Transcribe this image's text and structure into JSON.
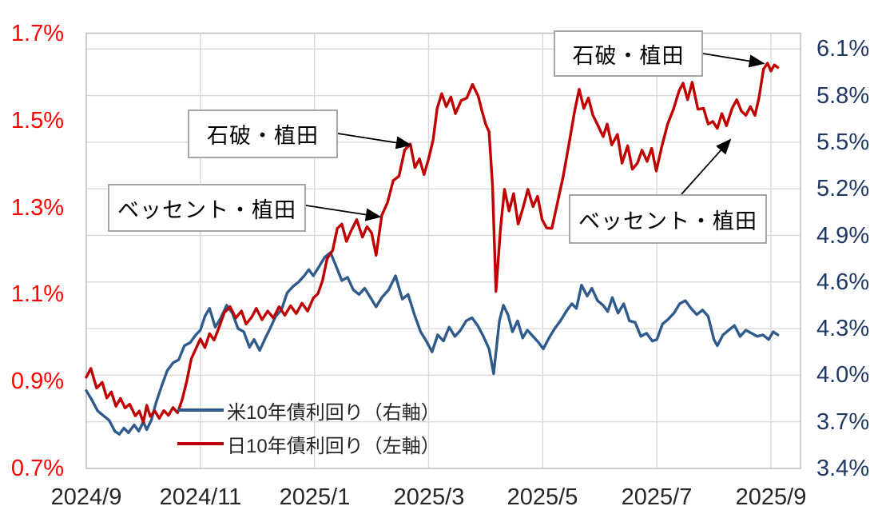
{
  "chart_data": {
    "type": "line",
    "title": "",
    "x_axis": {
      "tick_labels": [
        "2024/9",
        "2024/11",
        "2025/1",
        "2025/3",
        "2025/5",
        "2025/7",
        "2025/9"
      ],
      "unit": "year/month",
      "months_span": 12.52,
      "gridlines_every_months": 2
    },
    "left_axis": {
      "tick_labels": [
        "1.7%",
        "1.5%",
        "1.3%",
        "1.1%",
        "0.9%",
        "0.7%"
      ],
      "min": 0.7,
      "max": 1.7,
      "step": 0.2,
      "color": "#ff0000",
      "applies_to": "日10年債利回り"
    },
    "right_axis": {
      "tick_labels": [
        "6.1%",
        "5.8%",
        "5.5%",
        "5.2%",
        "4.9%",
        "4.6%",
        "4.3%",
        "4.0%",
        "3.7%",
        "3.4%"
      ],
      "min": 3.4,
      "max": 6.1,
      "step": 0.3,
      "color": "#1f3864",
      "applies_to": "米10年債利回り"
    },
    "grid": {
      "on": true,
      "color": "#d9d9d9",
      "border_color": "#bfbfbf"
    },
    "legend_position": "inside-bottom-left",
    "series": [
      {
        "name": "米10年債利回り（右軸）",
        "axis": "right",
        "color": "#2e5b8c",
        "points": [
          [
            0,
            3.9
          ],
          [
            0.1,
            3.84
          ],
          [
            0.2,
            3.77
          ],
          [
            0.3,
            3.74
          ],
          [
            0.4,
            3.71
          ],
          [
            0.5,
            3.64
          ],
          [
            0.58,
            3.62
          ],
          [
            0.66,
            3.66
          ],
          [
            0.74,
            3.63
          ],
          [
            0.84,
            3.68
          ],
          [
            0.92,
            3.64
          ],
          [
            1.0,
            3.7
          ],
          [
            1.06,
            3.65
          ],
          [
            1.14,
            3.71
          ],
          [
            1.22,
            3.82
          ],
          [
            1.32,
            3.93
          ],
          [
            1.42,
            4.03
          ],
          [
            1.52,
            4.08
          ],
          [
            1.62,
            4.1
          ],
          [
            1.72,
            4.19
          ],
          [
            1.82,
            4.21
          ],
          [
            1.92,
            4.26
          ],
          [
            2.0,
            4.29
          ],
          [
            2.08,
            4.38
          ],
          [
            2.16,
            4.43
          ],
          [
            2.26,
            4.31
          ],
          [
            2.36,
            4.37
          ],
          [
            2.46,
            4.45
          ],
          [
            2.56,
            4.4
          ],
          [
            2.66,
            4.3
          ],
          [
            2.76,
            4.28
          ],
          [
            2.86,
            4.18
          ],
          [
            2.94,
            4.23
          ],
          [
            3.04,
            4.16
          ],
          [
            3.14,
            4.24
          ],
          [
            3.22,
            4.3
          ],
          [
            3.32,
            4.38
          ],
          [
            3.42,
            4.42
          ],
          [
            3.52,
            4.53
          ],
          [
            3.62,
            4.57
          ],
          [
            3.72,
            4.6
          ],
          [
            3.82,
            4.64
          ],
          [
            3.9,
            4.68
          ],
          [
            3.98,
            4.64
          ],
          [
            4.08,
            4.7
          ],
          [
            4.18,
            4.76
          ],
          [
            4.28,
            4.79
          ],
          [
            4.38,
            4.7
          ],
          [
            4.48,
            4.61
          ],
          [
            4.58,
            4.63
          ],
          [
            4.68,
            4.55
          ],
          [
            4.78,
            4.52
          ],
          [
            4.88,
            4.56
          ],
          [
            4.98,
            4.5
          ],
          [
            5.08,
            4.44
          ],
          [
            5.18,
            4.5
          ],
          [
            5.3,
            4.55
          ],
          [
            5.42,
            4.64
          ],
          [
            5.54,
            4.49
          ],
          [
            5.64,
            4.52
          ],
          [
            5.76,
            4.38
          ],
          [
            5.86,
            4.28
          ],
          [
            5.96,
            4.22
          ],
          [
            6.06,
            4.15
          ],
          [
            6.16,
            4.26
          ],
          [
            6.26,
            4.22
          ],
          [
            6.36,
            4.31
          ],
          [
            6.46,
            4.25
          ],
          [
            6.56,
            4.29
          ],
          [
            6.66,
            4.35
          ],
          [
            6.76,
            4.37
          ],
          [
            6.86,
            4.32
          ],
          [
            6.96,
            4.25
          ],
          [
            7.06,
            4.17
          ],
          [
            7.14,
            4.01
          ],
          [
            7.24,
            4.35
          ],
          [
            7.31,
            4.45
          ],
          [
            7.39,
            4.39
          ],
          [
            7.47,
            4.28
          ],
          [
            7.56,
            4.35
          ],
          [
            7.65,
            4.24
          ],
          [
            7.73,
            4.29
          ],
          [
            7.83,
            4.25
          ],
          [
            7.93,
            4.21
          ],
          [
            8.01,
            4.17
          ],
          [
            8.11,
            4.24
          ],
          [
            8.21,
            4.3
          ],
          [
            8.31,
            4.35
          ],
          [
            8.41,
            4.41
          ],
          [
            8.51,
            4.46
          ],
          [
            8.59,
            4.43
          ],
          [
            8.68,
            4.58
          ],
          [
            8.78,
            4.51
          ],
          [
            8.86,
            4.56
          ],
          [
            8.96,
            4.48
          ],
          [
            9.06,
            4.45
          ],
          [
            9.14,
            4.41
          ],
          [
            9.22,
            4.5
          ],
          [
            9.32,
            4.4
          ],
          [
            9.42,
            4.46
          ],
          [
            9.52,
            4.35
          ],
          [
            9.62,
            4.34
          ],
          [
            9.72,
            4.25
          ],
          [
            9.82,
            4.27
          ],
          [
            9.92,
            4.22
          ],
          [
            10.0,
            4.23
          ],
          [
            10.1,
            4.33
          ],
          [
            10.2,
            4.36
          ],
          [
            10.3,
            4.4
          ],
          [
            10.4,
            4.46
          ],
          [
            10.5,
            4.48
          ],
          [
            10.6,
            4.43
          ],
          [
            10.7,
            4.39
          ],
          [
            10.8,
            4.42
          ],
          [
            10.9,
            4.38
          ],
          [
            11.0,
            4.23
          ],
          [
            11.06,
            4.19
          ],
          [
            11.16,
            4.26
          ],
          [
            11.26,
            4.29
          ],
          [
            11.36,
            4.32
          ],
          [
            11.46,
            4.25
          ],
          [
            11.56,
            4.29
          ],
          [
            11.66,
            4.27
          ],
          [
            11.76,
            4.25
          ],
          [
            11.86,
            4.26
          ],
          [
            11.96,
            4.23
          ],
          [
            12.04,
            4.28
          ],
          [
            12.12,
            4.26
          ]
        ]
      },
      {
        "name": "日10年債利回り（左軸）",
        "axis": "left",
        "color": "#c00000",
        "points": [
          [
            0,
            0.91
          ],
          [
            0.08,
            0.93
          ],
          [
            0.18,
            0.885
          ],
          [
            0.28,
            0.898
          ],
          [
            0.36,
            0.862
          ],
          [
            0.44,
            0.876
          ],
          [
            0.52,
            0.843
          ],
          [
            0.6,
            0.861
          ],
          [
            0.68,
            0.839
          ],
          [
            0.76,
            0.848
          ],
          [
            0.86,
            0.821
          ],
          [
            0.93,
            0.832
          ],
          [
            1.0,
            0.806
          ],
          [
            1.06,
            0.845
          ],
          [
            1.12,
            0.82
          ],
          [
            1.2,
            0.832
          ],
          [
            1.28,
            0.815
          ],
          [
            1.36,
            0.833
          ],
          [
            1.44,
            0.822
          ],
          [
            1.52,
            0.84
          ],
          [
            1.6,
            0.828
          ],
          [
            1.68,
            0.858
          ],
          [
            1.76,
            0.9
          ],
          [
            1.84,
            0.952
          ],
          [
            1.92,
            0.975
          ],
          [
            2.0,
            0.998
          ],
          [
            2.08,
            0.978
          ],
          [
            2.16,
            1.01
          ],
          [
            2.24,
            0.995
          ],
          [
            2.32,
            1.022
          ],
          [
            2.42,
            1.058
          ],
          [
            2.52,
            1.072
          ],
          [
            2.62,
            1.046
          ],
          [
            2.72,
            1.062
          ],
          [
            2.8,
            1.032
          ],
          [
            2.9,
            1.048
          ],
          [
            2.98,
            1.068
          ],
          [
            3.08,
            1.042
          ],
          [
            3.18,
            1.062
          ],
          [
            3.28,
            1.046
          ],
          [
            3.38,
            1.072
          ],
          [
            3.48,
            1.052
          ],
          [
            3.58,
            1.074
          ],
          [
            3.68,
            1.056
          ],
          [
            3.78,
            1.08
          ],
          [
            3.88,
            1.062
          ],
          [
            3.98,
            1.092
          ],
          [
            4.06,
            1.102
          ],
          [
            4.14,
            1.132
          ],
          [
            4.22,
            1.182
          ],
          [
            4.32,
            1.202
          ],
          [
            4.4,
            1.252
          ],
          [
            4.48,
            1.262
          ],
          [
            4.56,
            1.222
          ],
          [
            4.64,
            1.246
          ],
          [
            4.74,
            1.272
          ],
          [
            4.84,
            1.232
          ],
          [
            4.92,
            1.256
          ],
          [
            5.0,
            1.242
          ],
          [
            5.08,
            1.19
          ],
          [
            5.18,
            1.282
          ],
          [
            5.28,
            1.312
          ],
          [
            5.38,
            1.362
          ],
          [
            5.48,
            1.372
          ],
          [
            5.58,
            1.432
          ],
          [
            5.68,
            1.446
          ],
          [
            5.76,
            1.392
          ],
          [
            5.84,
            1.412
          ],
          [
            5.92,
            1.376
          ],
          [
            6.0,
            1.412
          ],
          [
            6.08,
            1.456
          ],
          [
            6.15,
            1.528
          ],
          [
            6.23,
            1.562
          ],
          [
            6.31,
            1.532
          ],
          [
            6.39,
            1.554
          ],
          [
            6.47,
            1.516
          ],
          [
            6.57,
            1.546
          ],
          [
            6.67,
            1.552
          ],
          [
            6.77,
            1.583
          ],
          [
            6.87,
            1.556
          ],
          [
            6.94,
            1.52
          ],
          [
            7.0,
            1.492
          ],
          [
            7.06,
            1.474
          ],
          [
            7.12,
            1.35
          ],
          [
            7.18,
            1.107
          ],
          [
            7.26,
            1.252
          ],
          [
            7.33,
            1.342
          ],
          [
            7.41,
            1.292
          ],
          [
            7.49,
            1.332
          ],
          [
            7.57,
            1.262
          ],
          [
            7.66,
            1.302
          ],
          [
            7.74,
            1.342
          ],
          [
            7.83,
            1.302
          ],
          [
            7.91,
            1.326
          ],
          [
            7.99,
            1.272
          ],
          [
            8.07,
            1.253
          ],
          [
            8.16,
            1.252
          ],
          [
            8.26,
            1.312
          ],
          [
            8.36,
            1.372
          ],
          [
            8.46,
            1.446
          ],
          [
            8.56,
            1.522
          ],
          [
            8.64,
            1.572
          ],
          [
            8.72,
            1.528
          ],
          [
            8.8,
            1.552
          ],
          [
            8.88,
            1.512
          ],
          [
            8.97,
            1.488
          ],
          [
            9.06,
            1.463
          ],
          [
            9.13,
            1.492
          ],
          [
            9.21,
            1.444
          ],
          [
            9.31,
            1.468
          ],
          [
            9.39,
            1.402
          ],
          [
            9.49,
            1.442
          ],
          [
            9.57,
            1.388
          ],
          [
            9.66,
            1.402
          ],
          [
            9.74,
            1.432
          ],
          [
            9.83,
            1.406
          ],
          [
            9.91,
            1.436
          ],
          [
            9.99,
            1.384
          ],
          [
            10.09,
            1.442
          ],
          [
            10.19,
            1.492
          ],
          [
            10.29,
            1.526
          ],
          [
            10.39,
            1.568
          ],
          [
            10.46,
            1.586
          ],
          [
            10.54,
            1.548
          ],
          [
            10.62,
            1.588
          ],
          [
            10.72,
            1.526
          ],
          [
            10.82,
            1.528
          ],
          [
            10.9,
            1.492
          ],
          [
            10.98,
            1.498
          ],
          [
            11.06,
            1.482
          ],
          [
            11.14,
            1.516
          ],
          [
            11.22,
            1.488
          ],
          [
            11.32,
            1.528
          ],
          [
            11.4,
            1.548
          ],
          [
            11.48,
            1.522
          ],
          [
            11.56,
            1.512
          ],
          [
            11.64,
            1.532
          ],
          [
            11.72,
            1.512
          ],
          [
            11.79,
            1.552
          ],
          [
            11.87,
            1.618
          ],
          [
            11.94,
            1.632
          ],
          [
            12.0,
            1.614
          ],
          [
            12.06,
            1.628
          ],
          [
            12.12,
            1.622
          ]
        ]
      }
    ],
    "annotations": [
      {
        "label": "石破・植田",
        "position": "top-right",
        "points_to": "red line end 2025/9 ≈1.63%"
      },
      {
        "label": "石破・植田",
        "position": "mid-left",
        "points_to": "red line 2025/2 ≈1.44%"
      },
      {
        "label": "ベッセント・植田",
        "position": "left",
        "points_to": "red line 2025/2 ≈1.28%"
      },
      {
        "label": "ベッセント・植田",
        "position": "right",
        "points_to": "red line 2025/8 ≈1.47%"
      }
    ]
  },
  "legend": {
    "items": [
      {
        "label": "米10年債利回り（右軸）",
        "color": "#2e5b8c"
      },
      {
        "label": "日10年債利回り（左軸）",
        "color": "#c00000"
      }
    ]
  }
}
